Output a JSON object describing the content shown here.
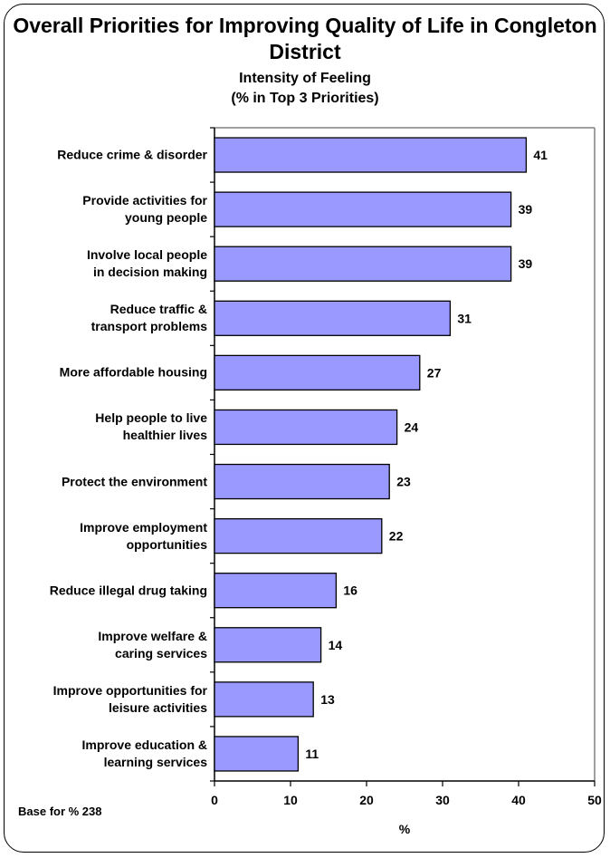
{
  "chart_data": {
    "type": "bar",
    "orientation": "horizontal",
    "title": "Overall Priorities for Improving Quality of Life in Congleton District",
    "subtitle_lines": [
      "Intensity of Feeling",
      "(% in Top 3 Priorities)"
    ],
    "xlabel": "%",
    "ylabel": "",
    "xlim": [
      0,
      50
    ],
    "xticks": [
      0,
      10,
      20,
      30,
      40,
      50
    ],
    "categories": [
      [
        "Reduce crime & disorder"
      ],
      [
        "Provide activities for",
        "young people"
      ],
      [
        "Involve local people",
        "in decision making"
      ],
      [
        "Reduce traffic &",
        "transport problems"
      ],
      [
        "More affordable housing"
      ],
      [
        "Help people to live",
        "healthier lives"
      ],
      [
        "Protect the environment"
      ],
      [
        "Improve employment",
        "opportunities"
      ],
      [
        "Reduce illegal drug taking"
      ],
      [
        "Improve welfare &",
        "caring services"
      ],
      [
        "Improve opportunities for",
        "leisure activities"
      ],
      [
        "Improve education &",
        "learning services"
      ]
    ],
    "values": [
      41,
      39,
      39,
      31,
      27,
      24,
      23,
      22,
      16,
      14,
      13,
      11
    ],
    "bar_color": "#9999ff",
    "grid": false,
    "base_note": "Base for % 238"
  }
}
